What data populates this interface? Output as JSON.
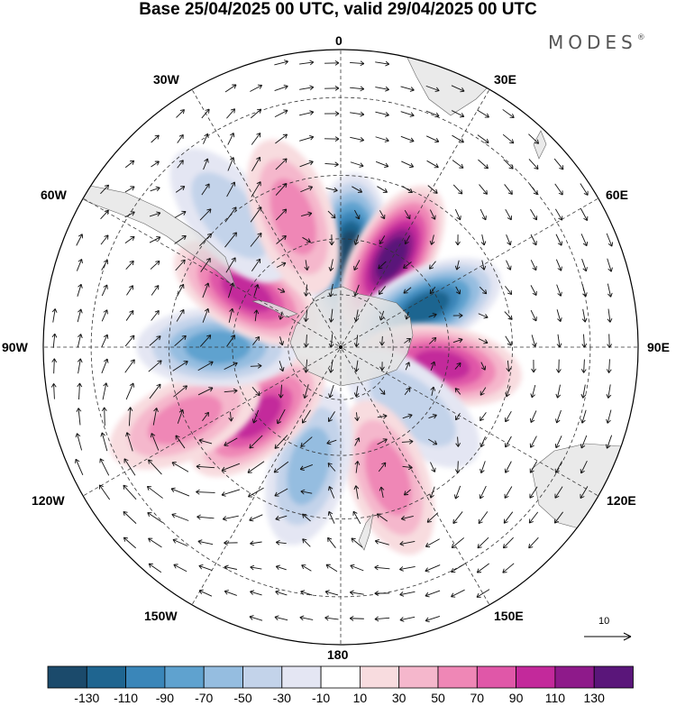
{
  "title": "Base 25/04/2025 00 UTC, valid 29/04/2025 00 UTC",
  "brand": {
    "name": "MODES",
    "mark": "®"
  },
  "longitude_labels": {
    "top": "0",
    "bottom": "180",
    "left": "90W",
    "right": "90E",
    "w30": "30W",
    "w60": "60W",
    "w120": "120W",
    "w150": "150W",
    "e30": "30E",
    "e60": "60E",
    "e120": "120E",
    "e150": "150E"
  },
  "reference_vector": {
    "label": "10"
  },
  "colorbar": {
    "labels": [
      "-130",
      "-110",
      "-90",
      "-70",
      "-50",
      "-30",
      "-10",
      "10",
      "30",
      "50",
      "70",
      "90",
      "110",
      "130"
    ],
    "colors": [
      "#1b4a6b",
      "#1f6590",
      "#3a86b9",
      "#5fa2cf",
      "#95bde0",
      "#c3d3ea",
      "#e4e6f3",
      "#ffffff",
      "#f8dcdf",
      "#f5b7cc",
      "#ef87b6",
      "#e057a8",
      "#c3299b",
      "#8e1a8a",
      "#5a167a"
    ]
  },
  "map": {
    "ocean_color": "#ffffff",
    "land_color": "#d9d9d9",
    "projection": "south polar stereographic",
    "anomaly_centers": [
      {
        "lon": 5,
        "lat": -55,
        "value": -130
      },
      {
        "lon": 30,
        "lat": -52,
        "value": 130
      },
      {
        "lon": 65,
        "lat": -55,
        "value": -120
      },
      {
        "lon": 100,
        "lat": -52,
        "value": 100
      },
      {
        "lon": 130,
        "lat": -55,
        "value": -40
      },
      {
        "lon": 160,
        "lat": -40,
        "value": 50
      },
      {
        "lon": -165,
        "lat": -45,
        "value": -50
      },
      {
        "lon": -130,
        "lat": -50,
        "value": 90
      },
      {
        "lon": -115,
        "lat": -30,
        "value": 60
      },
      {
        "lon": -90,
        "lat": -45,
        "value": -80
      },
      {
        "lon": -60,
        "lat": -50,
        "value": 90
      },
      {
        "lon": -40,
        "lat": -30,
        "value": -40
      },
      {
        "lon": -20,
        "lat": -40,
        "value": 60
      }
    ]
  }
}
